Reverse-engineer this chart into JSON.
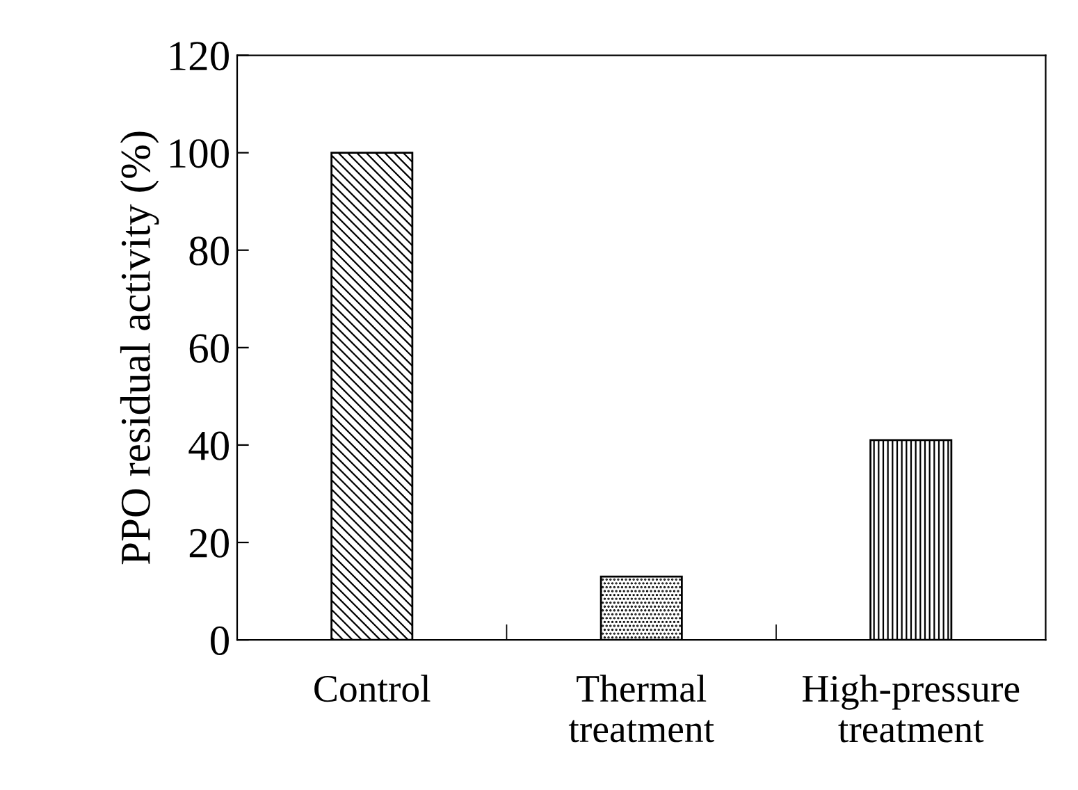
{
  "chart_data": {
    "type": "bar",
    "ylabel": "PPO residual activity (%)",
    "categories": [
      "Control",
      "Thermal\ntreatment",
      "High-pressure\ntreatment"
    ],
    "values": [
      100,
      13,
      41
    ],
    "color": "#000000",
    "ylim": [
      0,
      120
    ],
    "yticks": [
      0,
      20,
      40,
      60,
      80,
      100,
      120
    ],
    "grid": false,
    "legend": false
  }
}
